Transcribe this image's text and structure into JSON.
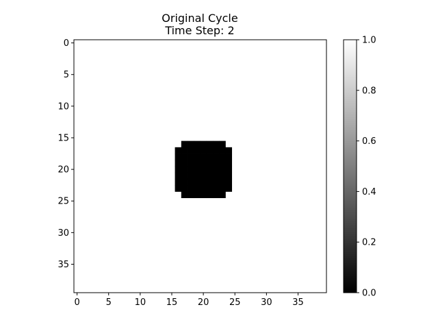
{
  "chart_data": {
    "type": "heatmap",
    "title": "Original Cycle",
    "subtitle": "Time Step: 2",
    "grid_size": [
      40,
      40
    ],
    "colormap": "gray",
    "background_value": 1.0,
    "cell_value": 0.0,
    "dark_cells_by_row": [
      {
        "rows": [
          16,
          16
        ],
        "cols": [
          17,
          23
        ]
      },
      {
        "rows": [
          17,
          23
        ],
        "cols": [
          16,
          24
        ]
      },
      {
        "rows": [
          24,
          24
        ],
        "cols": [
          17,
          23
        ]
      }
    ],
    "x_ticks": [
      0,
      5,
      10,
      15,
      20,
      25,
      30,
      35
    ],
    "y_ticks": [
      0,
      5,
      10,
      15,
      20,
      25,
      30,
      35
    ],
    "xlim": [
      -0.5,
      39.5
    ],
    "ylim": [
      39.5,
      -0.5
    ],
    "colorbar": {
      "range": [
        0.0,
        1.0
      ],
      "ticks": [
        "0.0",
        "0.2",
        "0.4",
        "0.6",
        "0.8",
        "1.0"
      ]
    },
    "grid": false,
    "legend": "none"
  }
}
